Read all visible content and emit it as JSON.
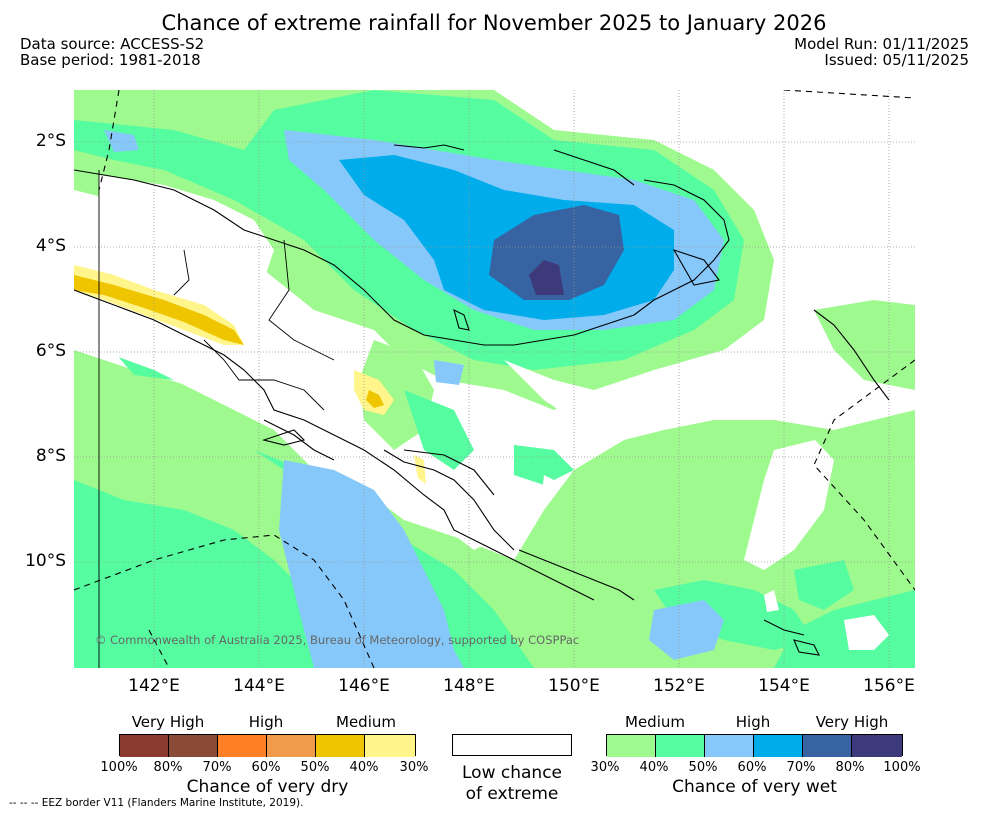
{
  "title": "Chance of extreme rainfall for November 2025 to January 2026",
  "data_source": "Data source: ACCESS-S2",
  "base_period": "Base period: 1981-2018",
  "model_run": "Model Run: 01/11/2025",
  "issued": "Issued: 05/11/2025",
  "lat_labels": [
    "2°S",
    "4°S",
    "6°S",
    "8°S",
    "10°S"
  ],
  "lon_labels": [
    "142°E",
    "144°E",
    "146°E",
    "148°E",
    "150°E",
    "152°E",
    "154°E",
    "156°E"
  ],
  "copyright": "© Commonwealth of Australia 2025, Bureau of Meteorology, supported by COSPPac",
  "dry_legend": {
    "categories": [
      "Very High",
      "High",
      "Medium"
    ],
    "colors": [
      "#8b3a2f",
      "#8b4a36",
      "#ff7f27",
      "#ef9b4b",
      "#efc500",
      "#fff58a"
    ],
    "ticks": [
      "100%",
      "80%",
      "70%",
      "60%",
      "50%",
      "40%",
      "30%"
    ],
    "caption": "Chance of very dry"
  },
  "low_legend": {
    "caption_line1": "Low chance",
    "caption_line2": "of extreme",
    "color": "#ffffff"
  },
  "wet_legend": {
    "categories": [
      "Medium",
      "High",
      "Very High"
    ],
    "colors": [
      "#9efa8e",
      "#55fca0",
      "#86c8fa",
      "#00adea",
      "#3763a3",
      "#3c3a7a"
    ],
    "ticks": [
      "30%",
      "40%",
      "50%",
      "60%",
      "70%",
      "80%",
      "100%"
    ],
    "caption": "Chance of very wet"
  },
  "eez_note": "-- -- -- EEZ border V11 (Flanders Marine Institute, 2019)."
}
